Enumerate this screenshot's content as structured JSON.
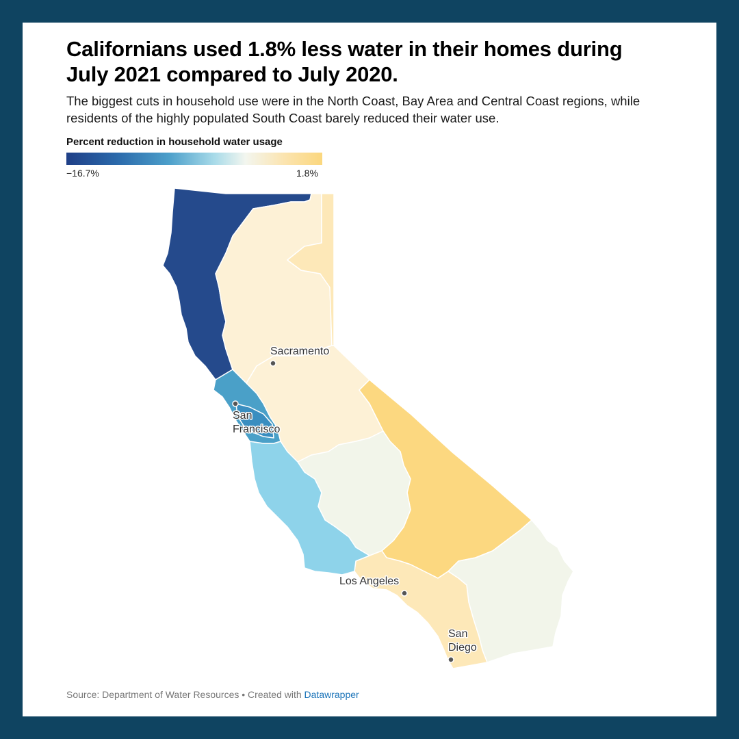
{
  "title": "Californians used 1.8% less water in their homes during July 2021 compared to July 2020.",
  "subtitle": "The biggest cuts in household use were in the North Coast, Bay Area and Central Coast regions, while residents of the highly populated South Coast barely reduced their water use.",
  "legend": {
    "title": "Percent reduction in household water usage",
    "min_label": "−16.7%",
    "max_label": "1.8%",
    "colors": [
      "#1f3f87",
      "#2b6aab",
      "#4c9fca",
      "#a9dbe9",
      "#f3f6ef",
      "#fbe4b0",
      "#fbd77e"
    ]
  },
  "regions": {
    "north_coast": {
      "color": "#254a8c"
    },
    "sacramento_river": {
      "color": "#fdf1d6"
    },
    "north_lahontan": {
      "color": "#fde8b8"
    },
    "san_francisco_bay": {
      "color": "#4aa0c8"
    },
    "sf_bay_core": {
      "color": "#3a8ec0"
    },
    "central_coast": {
      "color": "#8ed3ea"
    },
    "san_joaquin_river": {
      "color": "#fdf1d6"
    },
    "tulare_lake": {
      "color": "#f2f5ea"
    },
    "south_lahontan": {
      "color": "#fcd880"
    },
    "south_coast": {
      "color": "#fde8b8"
    },
    "colorado_river": {
      "color": "#f2f5ea"
    }
  },
  "cities": [
    {
      "name": "Sacramento",
      "lines": [
        "Sacramento"
      ]
    },
    {
      "name": "San Francisco",
      "lines": [
        "San",
        "Francisco"
      ]
    },
    {
      "name": "Los Angeles",
      "lines": [
        "Los Angeles"
      ]
    },
    {
      "name": "San Diego",
      "lines": [
        "San",
        "Diego"
      ]
    }
  ],
  "footer": {
    "source": "Source: Department of Water Resources • Created with ",
    "link": "Datawrapper"
  }
}
